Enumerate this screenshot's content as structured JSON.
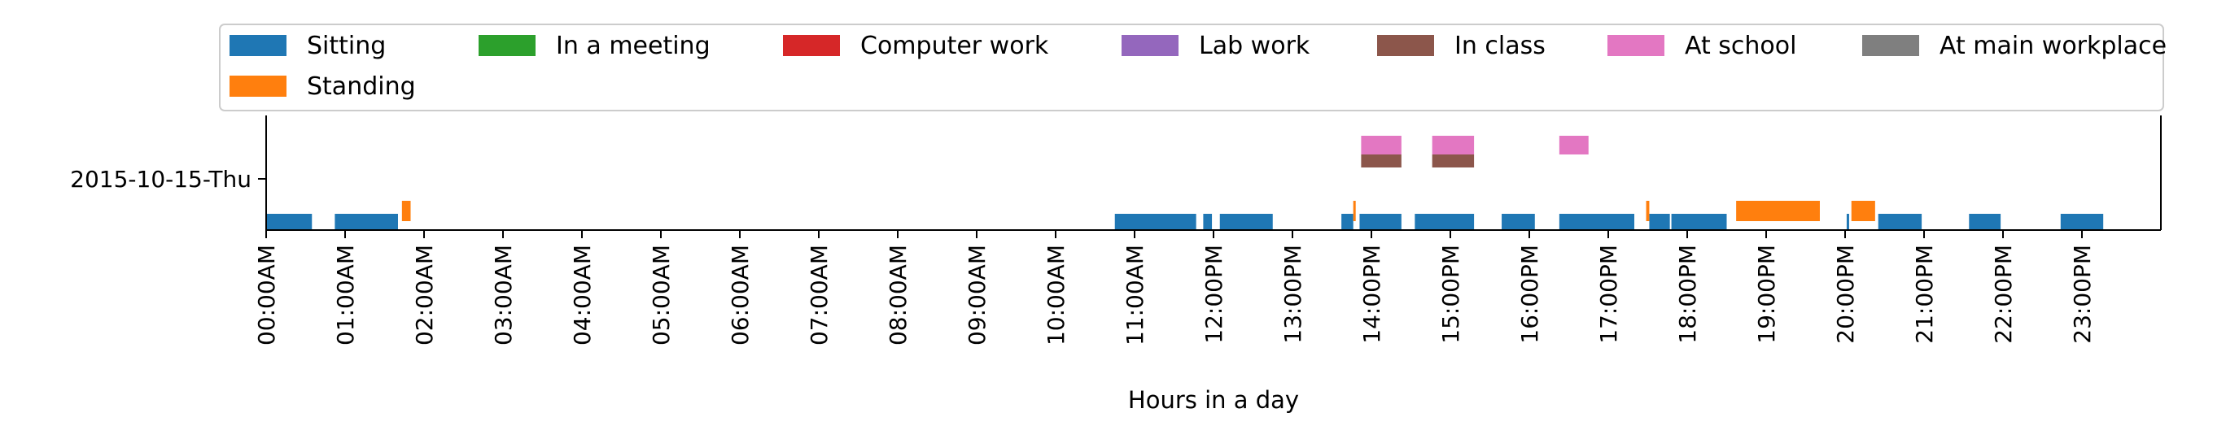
{
  "chart_data": {
    "type": "timeline",
    "xlabel": "Hours in a day",
    "xlim": [
      0,
      24
    ],
    "grid": false,
    "legend_position": "top",
    "y_category": "2015-10-15-Thu",
    "x_ticks": [
      0,
      1,
      2,
      3,
      4,
      5,
      6,
      7,
      8,
      9,
      10,
      11,
      12,
      13,
      14,
      15,
      16,
      17,
      18,
      19,
      20,
      21,
      22,
      23
    ],
    "x_tick_labels": [
      "00:00AM",
      "01:00AM",
      "02:00AM",
      "03:00AM",
      "04:00AM",
      "05:00AM",
      "06:00AM",
      "07:00AM",
      "08:00AM",
      "09:00AM",
      "10:00AM",
      "11:00AM",
      "12:00PM",
      "13:00PM",
      "14:00PM",
      "15:00PM",
      "16:00PM",
      "17:00PM",
      "18:00PM",
      "19:00PM",
      "20:00PM",
      "21:00PM",
      "22:00PM",
      "23:00PM"
    ],
    "series": [
      {
        "name": "Sitting",
        "color": "#1f77b4",
        "intervals": [
          [
            0.0,
            0.58
          ],
          [
            0.87,
            1.67
          ],
          [
            10.75,
            11.78
          ],
          [
            11.87,
            11.98
          ],
          [
            12.08,
            12.75
          ],
          [
            13.62,
            13.77
          ],
          [
            13.85,
            14.38
          ],
          [
            14.55,
            15.3
          ],
          [
            15.65,
            16.07
          ],
          [
            16.38,
            17.33
          ],
          [
            17.52,
            17.78
          ],
          [
            17.8,
            18.5
          ],
          [
            20.02,
            20.05
          ],
          [
            20.42,
            20.97
          ],
          [
            21.57,
            21.97
          ],
          [
            22.73,
            23.27
          ]
        ]
      },
      {
        "name": "Standing",
        "color": "#ff7f0e",
        "intervals": [
          [
            1.72,
            1.83
          ],
          [
            13.77,
            13.8
          ],
          [
            17.48,
            17.52
          ],
          [
            18.62,
            19.68
          ],
          [
            20.08,
            20.38
          ]
        ]
      },
      {
        "name": "In a meeting",
        "color": "#2ca02c",
        "intervals": []
      },
      {
        "name": "Computer work",
        "color": "#d62728",
        "intervals": []
      },
      {
        "name": "Lab work",
        "color": "#9467bd",
        "intervals": []
      },
      {
        "name": "In class",
        "color": "#8c564b",
        "intervals": [
          [
            13.87,
            14.38
          ],
          [
            14.77,
            15.3
          ]
        ]
      },
      {
        "name": "At school",
        "color": "#e377c2",
        "intervals": [
          [
            13.87,
            14.38
          ],
          [
            14.77,
            15.3
          ],
          [
            16.38,
            16.75
          ]
        ]
      },
      {
        "name": "At main workplace",
        "color": "#7f7f7f",
        "intervals": []
      }
    ]
  }
}
